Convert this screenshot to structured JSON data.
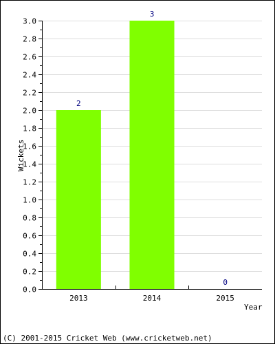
{
  "chart_data": {
    "type": "bar",
    "categories": [
      "2013",
      "2014",
      "2015"
    ],
    "values": [
      2,
      3,
      0
    ],
    "data_labels": [
      "2",
      "3",
      "0"
    ],
    "title": "",
    "xlabel": "Year",
    "ylabel": "Wickets",
    "ylim": [
      0,
      3.0
    ],
    "yticks": [
      "0.0",
      "0.2",
      "0.4",
      "0.6",
      "0.8",
      "1.0",
      "1.2",
      "1.4",
      "1.6",
      "1.8",
      "2.0",
      "2.2",
      "2.4",
      "2.6",
      "2.8",
      "3.0"
    ],
    "grid": true,
    "legend": "none",
    "bar_color": "#80ff00",
    "data_label_color": "#000080"
  },
  "footer": "(C) 2001-2015 Cricket Web (www.cricketweb.net)"
}
